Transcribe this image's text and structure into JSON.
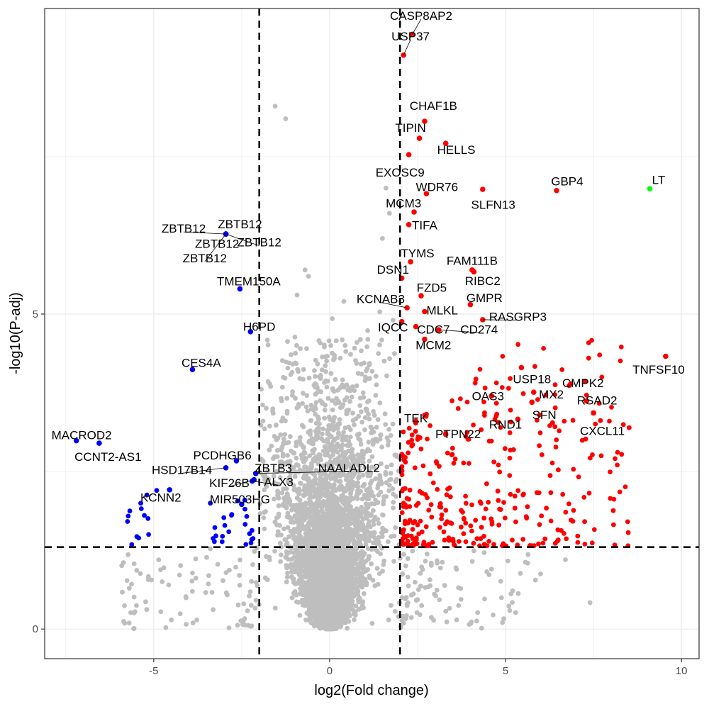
{
  "chart_data": {
    "type": "scatter",
    "title": "",
    "xlabel": "log2(Fold change)",
    "ylabel": "-log10(P-adj)",
    "xlim": [
      -8.1,
      10.5
    ],
    "ylim": [
      -0.47,
      9.85
    ],
    "x_ticks": [
      {
        "value": -5,
        "label": "-5"
      },
      {
        "value": 0,
        "label": "0"
      },
      {
        "value": 5,
        "label": "5"
      },
      {
        "value": 10,
        "label": "10"
      }
    ],
    "y_ticks": [
      {
        "value": 0,
        "label": "0"
      },
      {
        "value": 5,
        "label": "5"
      }
    ],
    "grid": true,
    "legend": "none",
    "thresholds": {
      "x": [
        -2,
        2
      ],
      "y": 1.3
    },
    "colors": {
      "nonsignificant": "#bebebe",
      "up": "#ff0000",
      "down": "#0000ff",
      "highlight": "#00ff00",
      "threshold_line": "#000000",
      "grid": "#ebebeb"
    },
    "labeled_points": [
      {
        "gene": "CASP8AP2",
        "x": 2.35,
        "y": 9.44,
        "group": "up",
        "lx": 2.6,
        "ly": 9.74
      },
      {
        "gene": "USP37",
        "x": 2.1,
        "y": 9.11,
        "group": "up",
        "lx": 2.3,
        "ly": 9.41
      },
      {
        "gene": "CHAF1B",
        "x": 2.7,
        "y": 8.06,
        "group": "up",
        "lx": 2.95,
        "ly": 8.31
      },
      {
        "gene": "TIPIN",
        "x": 2.55,
        "y": 7.79,
        "group": "up",
        "lx": 2.3,
        "ly": 7.96
      },
      {
        "gene": "HELLS",
        "x": 3.3,
        "y": 7.71,
        "group": "up",
        "lx": 3.6,
        "ly": 7.61
      },
      {
        "gene": "EXOSC9",
        "x": 2.25,
        "y": 7.53,
        "group": "up",
        "lx": 2.0,
        "ly": 7.25
      },
      {
        "gene": "WDR76",
        "x": 2.75,
        "y": 6.91,
        "group": "up",
        "lx": 3.05,
        "ly": 7.02
      },
      {
        "gene": "SLFN13",
        "x": 4.35,
        "y": 6.98,
        "group": "up",
        "lx": 4.65,
        "ly": 6.74
      },
      {
        "gene": "GBP4",
        "x": 6.45,
        "y": 6.96,
        "group": "up",
        "lx": 6.75,
        "ly": 7.11
      },
      {
        "gene": "LT",
        "x": 9.1,
        "y": 6.99,
        "group": "highlight",
        "lx": 9.35,
        "ly": 7.13
      },
      {
        "gene": "MCM3",
        "x": 2.4,
        "y": 6.62,
        "group": "up",
        "lx": 2.1,
        "ly": 6.76
      },
      {
        "gene": "TIFA",
        "x": 2.25,
        "y": 6.42,
        "group": "up",
        "lx": 2.7,
        "ly": 6.41
      },
      {
        "gene": "ZBTB12",
        "x": -2.95,
        "y": 6.27,
        "group": "down",
        "lx": -4.15,
        "ly": 6.36
      },
      {
        "gene": "ZBTB12",
        "x": -2.95,
        "y": 6.27,
        "group": "down",
        "lx": -2.55,
        "ly": 6.43
      },
      {
        "gene": "ZBTB12",
        "x": -2.95,
        "y": 6.27,
        "group": "down",
        "lx": -2.0,
        "ly": 6.14
      },
      {
        "gene": "ZBTB12",
        "x": -2.95,
        "y": 6.27,
        "group": "down",
        "lx": -3.2,
        "ly": 6.12
      },
      {
        "gene": "ZBTB12",
        "x": -2.95,
        "y": 6.27,
        "group": "down",
        "lx": -3.55,
        "ly": 5.89
      },
      {
        "gene": "TYMS",
        "x": 2.3,
        "y": 5.83,
        "group": "up",
        "lx": 2.5,
        "ly": 5.97
      },
      {
        "gene": "FAM111B",
        "x": 4.05,
        "y": 5.7,
        "group": "up",
        "lx": 4.05,
        "ly": 5.85
      },
      {
        "gene": "DSN1",
        "x": 2.05,
        "y": 5.57,
        "group": "up",
        "lx": 1.8,
        "ly": 5.71
      },
      {
        "gene": "RIBC2",
        "x": 4.1,
        "y": 5.67,
        "group": "up",
        "lx": 4.35,
        "ly": 5.53
      },
      {
        "gene": "TMEM150A",
        "x": -2.55,
        "y": 5.4,
        "group": "down",
        "lx": -2.3,
        "ly": 5.52
      },
      {
        "gene": "FZD5",
        "x": 2.6,
        "y": 5.29,
        "group": "up",
        "lx": 2.9,
        "ly": 5.42
      },
      {
        "gene": "GMPR",
        "x": 4.0,
        "y": 5.15,
        "group": "up",
        "lx": 4.4,
        "ly": 5.26
      },
      {
        "gene": "KCNAB3",
        "x": 2.2,
        "y": 5.1,
        "group": "up",
        "lx": 1.45,
        "ly": 5.24
      },
      {
        "gene": "MLKL",
        "x": 2.7,
        "y": 5.04,
        "group": "up",
        "lx": 3.2,
        "ly": 5.06
      },
      {
        "gene": "RASGRP3",
        "x": 4.35,
        "y": 4.91,
        "group": "up",
        "lx": 5.35,
        "ly": 4.96
      },
      {
        "gene": "IQCC",
        "x": 2.05,
        "y": 4.88,
        "group": "up",
        "lx": 1.8,
        "ly": 4.79
      },
      {
        "gene": "H6PD",
        "x": -2.25,
        "y": 4.72,
        "group": "down",
        "lx": -2.0,
        "ly": 4.8
      },
      {
        "gene": "CDC7",
        "x": 2.45,
        "y": 4.8,
        "group": "up",
        "lx": 2.95,
        "ly": 4.76
      },
      {
        "gene": "CD274",
        "x": 3.1,
        "y": 4.75,
        "group": "up",
        "lx": 4.25,
        "ly": 4.76
      },
      {
        "gene": "MCM2",
        "x": 2.7,
        "y": 4.6,
        "group": "up",
        "lx": 2.95,
        "ly": 4.51
      },
      {
        "gene": "TNFSF10",
        "x": 9.55,
        "y": 4.33,
        "group": "up",
        "lx": 9.35,
        "ly": 4.12
      },
      {
        "gene": "CES4A",
        "x": -3.9,
        "y": 4.12,
        "group": "down",
        "lx": -3.65,
        "ly": 4.23
      },
      {
        "gene": "USP18",
        "x": 5.45,
        "y": 4.15,
        "group": "up",
        "lx": 5.75,
        "ly": 3.97
      },
      {
        "gene": "CMPK2",
        "x": 6.85,
        "y": 3.89,
        "group": "up",
        "lx": 7.2,
        "ly": 3.91
      },
      {
        "gene": "OAS3",
        "x": 4.6,
        "y": 3.7,
        "group": "up",
        "lx": 4.5,
        "ly": 3.7
      },
      {
        "gene": "MX2",
        "x": 5.8,
        "y": 3.76,
        "group": "up",
        "lx": 6.3,
        "ly": 3.73
      },
      {
        "gene": "RSAD2",
        "x": 7.3,
        "y": 3.62,
        "group": "up",
        "lx": 7.6,
        "ly": 3.63
      },
      {
        "gene": "SFN",
        "x": 5.75,
        "y": 3.6,
        "group": "up",
        "lx": 6.1,
        "ly": 3.4
      },
      {
        "gene": "TEK",
        "x": 2.45,
        "y": 3.3,
        "group": "up",
        "lx": 2.45,
        "ly": 3.35
      },
      {
        "gene": "RND1",
        "x": 5.35,
        "y": 3.33,
        "group": "up",
        "lx": 5.0,
        "ly": 3.25
      },
      {
        "gene": "PTPN22",
        "x": 3.3,
        "y": 3.09,
        "group": "up",
        "lx": 3.65,
        "ly": 3.1
      },
      {
        "gene": "CXCL11",
        "x": 7.5,
        "y": 3.43,
        "group": "up",
        "lx": 7.75,
        "ly": 3.15
      },
      {
        "gene": "MACROD2",
        "x": -7.2,
        "y": 2.99,
        "group": "down",
        "lx": -7.05,
        "ly": 3.08
      },
      {
        "gene": "CCNT2-AS1",
        "x": -6.55,
        "y": 2.95,
        "group": "down",
        "lx": -6.3,
        "ly": 2.74
      },
      {
        "gene": "PCDHGB6",
        "x": -2.65,
        "y": 2.67,
        "group": "down",
        "lx": -3.05,
        "ly": 2.76
      },
      {
        "gene": "HSD17B14",
        "x": -2.95,
        "y": 2.56,
        "group": "down",
        "lx": -4.2,
        "ly": 2.53
      },
      {
        "gene": "ZBTB3",
        "x": -2.1,
        "y": 2.47,
        "group": "down",
        "lx": -1.6,
        "ly": 2.56
      },
      {
        "gene": "NAALADL2",
        "x": -2.1,
        "y": 2.47,
        "group": "down",
        "lx": 0.55,
        "ly": 2.56
      },
      {
        "gene": "KIF26B",
        "x": -2.15,
        "y": 2.37,
        "group": "down",
        "lx": -2.85,
        "ly": 2.32
      },
      {
        "gene": "ALX3",
        "x": -2.2,
        "y": 2.35,
        "group": "down",
        "lx": -1.45,
        "ly": 2.34
      },
      {
        "gene": "KCNN2",
        "x": -4.55,
        "y": 2.21,
        "group": "down",
        "lx": -4.8,
        "ly": 2.09
      },
      {
        "gene": "MIR503HG",
        "x": -2.5,
        "y": 1.98,
        "group": "down",
        "lx": -2.55,
        "ly": 2.06
      }
    ],
    "ns_seed": 7,
    "ns_count": 4300,
    "up_count": 330,
    "down_count": 36
  }
}
